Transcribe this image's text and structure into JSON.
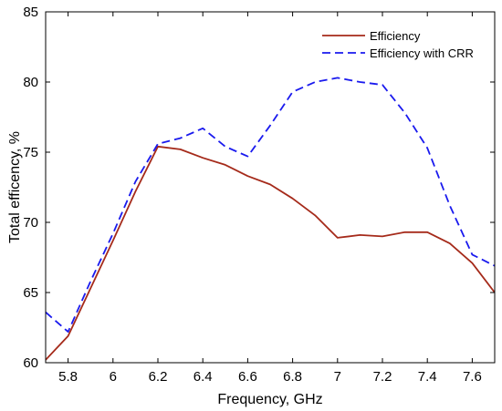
{
  "chart_data": {
    "type": "line",
    "xlabel": "Frequency, GHz",
    "ylabel": "Total efficency, %",
    "xlim": [
      5.7,
      7.7
    ],
    "ylim": [
      60,
      85
    ],
    "xticks": [
      5.8,
      6,
      6.2,
      6.4,
      6.6,
      6.8,
      7,
      7.2,
      7.4,
      7.6
    ],
    "xtick_labels": [
      "5.8",
      "6",
      "6.2",
      "6.4",
      "6.6",
      "6.8",
      "7",
      "7.2",
      "7.4",
      "7.6"
    ],
    "yticks": [
      60,
      65,
      70,
      75,
      80,
      85
    ],
    "ytick_labels": [
      "60",
      "65",
      "70",
      "75",
      "80",
      "85"
    ],
    "grid": false,
    "legend_position": "top-right",
    "series": [
      {
        "name": "Efficiency",
        "color": "#a52a1a",
        "style": "solid",
        "x": [
          5.7,
          5.8,
          5.9,
          6.0,
          6.1,
          6.2,
          6.3,
          6.4,
          6.5,
          6.6,
          6.7,
          6.8,
          6.9,
          7.0,
          7.1,
          7.2,
          7.3,
          7.4,
          7.5,
          7.6,
          7.7
        ],
        "y": [
          60.2,
          61.9,
          65.3,
          68.7,
          72.2,
          75.4,
          75.2,
          74.6,
          74.1,
          73.3,
          72.7,
          71.7,
          70.5,
          68.9,
          69.1,
          69.0,
          69.3,
          69.3,
          68.5,
          67.1,
          65.0
        ]
      },
      {
        "name": "Efficiency with CRR",
        "color": "#1a1aee",
        "style": "dashed",
        "x": [
          5.7,
          5.8,
          5.9,
          6.0,
          6.1,
          6.2,
          6.3,
          6.4,
          6.5,
          6.6,
          6.7,
          6.8,
          6.9,
          7.0,
          7.1,
          7.2,
          7.3,
          7.4,
          7.5,
          7.6,
          7.7
        ],
        "y": [
          63.6,
          62.2,
          65.8,
          69.2,
          72.9,
          75.6,
          76.0,
          76.7,
          75.4,
          74.7,
          76.9,
          79.3,
          80.0,
          80.3,
          80.0,
          79.8,
          77.8,
          75.3,
          71.2,
          67.7,
          66.9
        ]
      }
    ]
  }
}
